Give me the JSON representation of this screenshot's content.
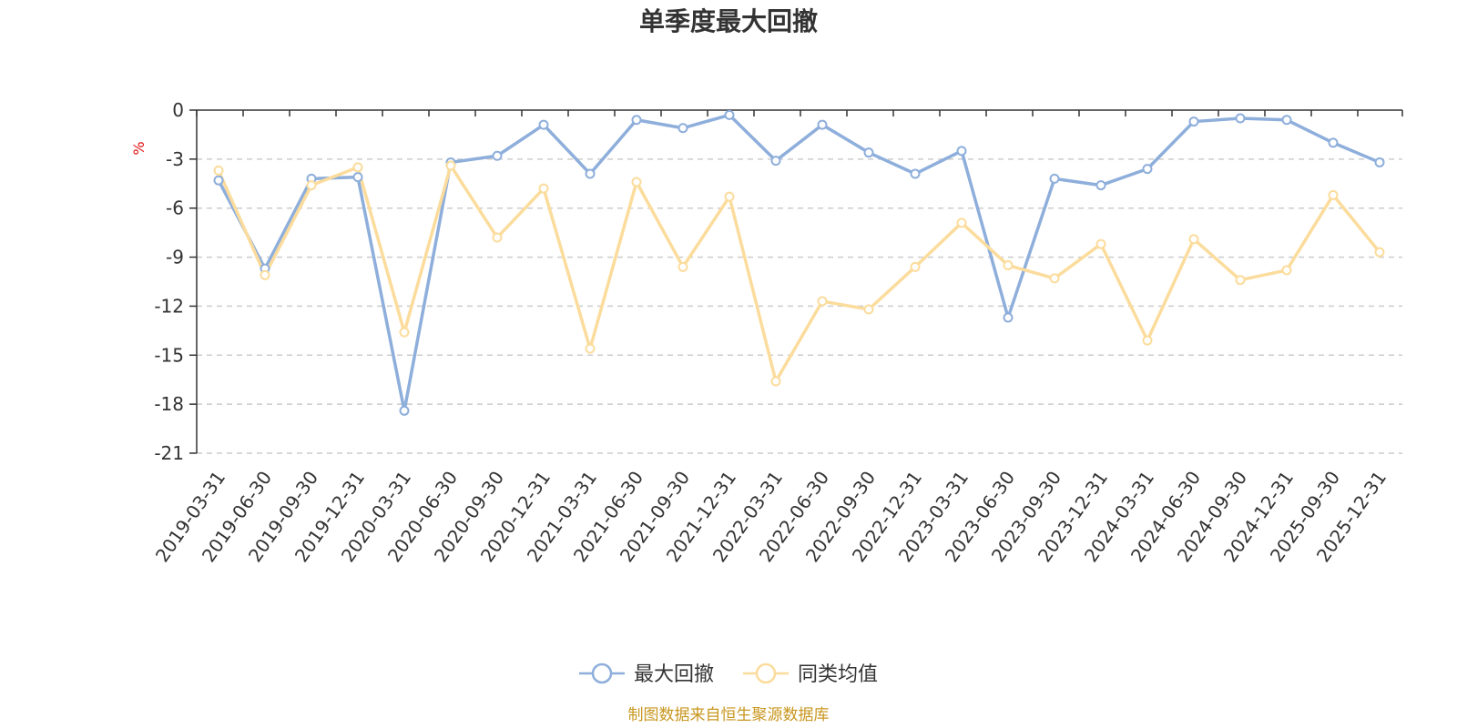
{
  "chart_data": {
    "type": "line",
    "title": "单季度最大回撤",
    "ylabel": "%",
    "ylim": [
      -21,
      0
    ],
    "yticks": [
      0,
      -3,
      -6,
      -9,
      -12,
      -15,
      -18,
      -21
    ],
    "grid": "horizontal-dashed",
    "legend_position": "bottom-center",
    "categories": [
      "2019-03-31",
      "2019-06-30",
      "2019-09-30",
      "2019-12-31",
      "2020-03-31",
      "2020-06-30",
      "2020-09-30",
      "2020-12-31",
      "2021-03-31",
      "2021-06-30",
      "2021-09-30",
      "2021-12-31",
      "2022-03-31",
      "2022-06-30",
      "2022-09-30",
      "2022-12-31",
      "2023-03-31",
      "2023-06-30",
      "2023-09-30",
      "2023-12-31",
      "2024-03-31",
      "2024-06-30",
      "2024-09-30",
      "2024-12-31",
      "2025-09-30",
      "2025-12-31"
    ],
    "series": [
      {
        "name": "最大回撤",
        "color": "#8eaedb",
        "values": [
          -4.3,
          -9.7,
          -4.2,
          -4.1,
          -18.4,
          -3.2,
          -2.8,
          -0.9,
          -3.9,
          -0.6,
          -1.1,
          -0.3,
          -3.1,
          -0.9,
          -2.6,
          -3.9,
          -2.5,
          -12.7,
          -4.2,
          -4.6,
          -3.6,
          -0.7,
          -0.5,
          -0.6,
          -2.0,
          -3.2
        ]
      },
      {
        "name": "同类均值",
        "color": "#fbdc9c",
        "values": [
          -3.7,
          -10.1,
          -4.6,
          -3.5,
          -13.6,
          -3.4,
          -7.8,
          -4.8,
          -14.6,
          -4.4,
          -9.6,
          -5.3,
          -16.6,
          -11.7,
          -12.2,
          -9.6,
          -6.9,
          -9.5,
          -10.3,
          -8.2,
          -14.1,
          -7.9,
          -10.4,
          -9.8,
          -5.2,
          -8.7
        ]
      }
    ],
    "source": "制图数据来自恒生聚源数据库"
  }
}
